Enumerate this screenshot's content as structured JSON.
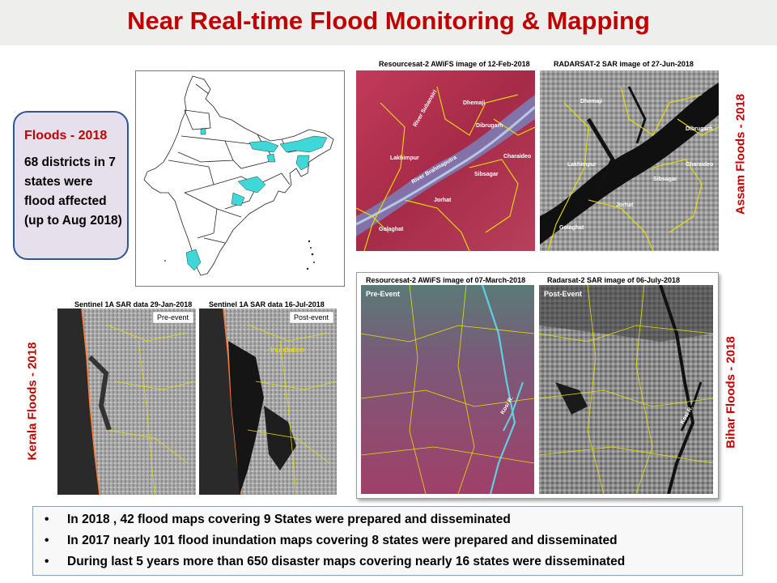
{
  "title": "Near Real-time Flood Monitoring & Mapping",
  "callout": {
    "heading": "Floods - 2018",
    "text": "68 districts in 7 states were flood affected (up to Aug 2018)"
  },
  "assam": {
    "caption_left": "Resourcesat-2 AWiFS image of 12-Feb-2018",
    "caption_right": "RADARSAT-2 SAR image of 27-Jun-2018",
    "vertical_title": "Assam Floods - 2018",
    "labels": [
      "Dhemaji",
      "Dibrugarh",
      "Lakhimpur",
      "Charaideo",
      "Sibsagar",
      "Jorhat",
      "Golaghat",
      "River Brahmaputra",
      "River Subansiri"
    ]
  },
  "kerala": {
    "caption_left": "Sentinel 1A SAR data 29-Jan-2018",
    "caption_right": "Sentinel 1A SAR data 16-Jul-2018",
    "pre_label": "Pre-event",
    "post_label": "Post-event",
    "inundation_label": "Inundation",
    "vertical_title": "Kerala Floods - 2018"
  },
  "bihar": {
    "caption_left": "Resourcesat-2 AWiFS  image of 07-March-2018",
    "caption_right": "Radarsat-2  SAR image of 06-July-2018",
    "pre_label": "Pre-Event",
    "post_label": "Post-Event",
    "river_label": "Kosi R.",
    "vertical_title": "Bihar Floods - 2018"
  },
  "bullets": [
    "In 2018 ,  42 flood maps covering 9 States were prepared and disseminated",
    "In 2017 nearly 101  flood inundation  maps covering 8 states were prepared and  disseminated",
    "During last 5 years more than 650 disaster maps covering nearly 16 states were disseminated"
  ],
  "bullet_symbol": "•",
  "colors": {
    "title_red": "#c00000",
    "callout_border": "#2f5597",
    "callout_fill": "#e6e0ec",
    "flood_cyan": "#3fd8d8",
    "false_color_red": "#b0324f",
    "boundary_yellow": "#e8e000"
  }
}
